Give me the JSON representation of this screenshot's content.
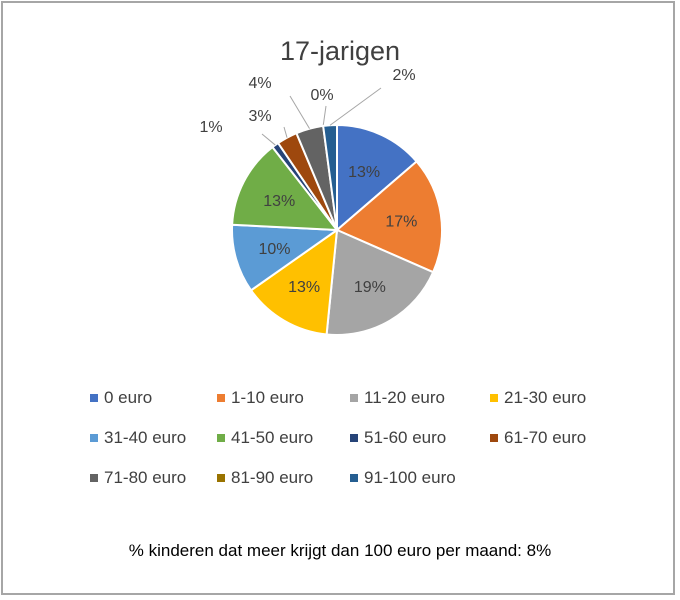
{
  "chart_data": {
    "type": "pie",
    "title": "17-jarigen",
    "categories": [
      "0 euro",
      "1-10 euro",
      "11-20 euro",
      "21-30 euro",
      "31-40 euro",
      "41-50 euro",
      "51-60 euro",
      "61-70 euro",
      "71-80 euro",
      "81-90 euro",
      "91-100 euro"
    ],
    "values": [
      13,
      17,
      19,
      13,
      10,
      13,
      1,
      3,
      4,
      0,
      2
    ],
    "labels": [
      "13%",
      "17%",
      "19%",
      "13%",
      "10%",
      "13%",
      "1%",
      "3%",
      "4%",
      "0%",
      "2%"
    ],
    "colors": [
      "#4472c4",
      "#ed7d31",
      "#a5a5a5",
      "#ffc000",
      "#5b9bd5",
      "#70ad47",
      "#264478",
      "#9e480e",
      "#636363",
      "#997300",
      "#255e91"
    ],
    "legend": "bottom"
  },
  "footnote": "% kinderen dat meer krijgt dan 100 euro per maand: 8%"
}
